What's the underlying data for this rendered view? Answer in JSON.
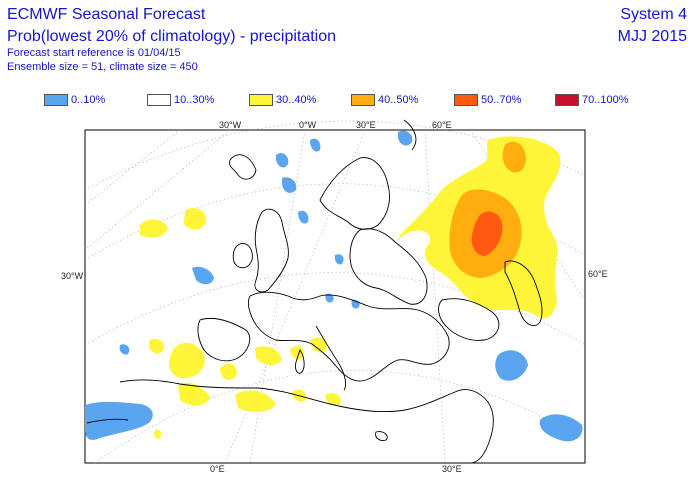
{
  "header": {
    "title": "ECMWF Seasonal Forecast",
    "subtitle": "Prob(lowest 20% of climatology) - precipitation",
    "start_ref": "Forecast start reference is 01/04/15",
    "ensemble": "Ensemble size = 51, climate size = 450",
    "system": "System 4",
    "period": "MJJ 2015"
  },
  "legend": [
    {
      "label": "0..10%",
      "color": "#5aa5f0"
    },
    {
      "label": "10..30%",
      "color": "#ffffff"
    },
    {
      "label": "30..40%",
      "color": "#fff538"
    },
    {
      "label": "40..50%",
      "color": "#ffad0f"
    },
    {
      "label": "50..70%",
      "color": "#ff5a0f"
    },
    {
      "label": "70..100%",
      "color": "#c8102e"
    }
  ],
  "axis_labels": {
    "top_30w": "30°W",
    "top_0w": "0°W",
    "top_30e": "30°E",
    "top_60e": "60°E",
    "left_30w": "30°W",
    "right_60e": "60°E",
    "bottom_0e": "0°E",
    "bottom_30e": "30°E"
  }
}
